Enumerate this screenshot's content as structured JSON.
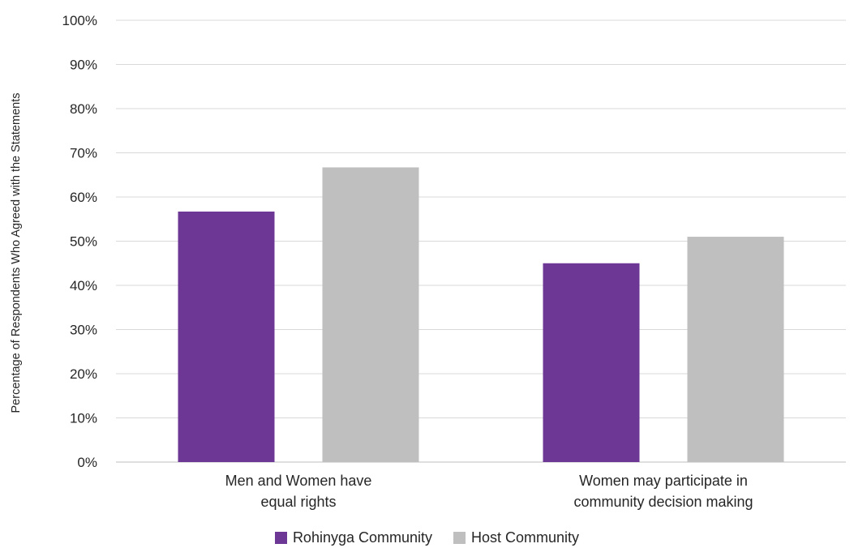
{
  "chart_data": {
    "type": "bar",
    "ylabel": "Percentage of Respondents Who Agreed with the Statements",
    "ylim": [
      0,
      100
    ],
    "y_ticks": [
      "0%",
      "10%",
      "20%",
      "30%",
      "40%",
      "50%",
      "60%",
      "70%",
      "80%",
      "90%",
      "100%"
    ],
    "categories": [
      [
        "Men and Women have",
        "equal rights"
      ],
      [
        "Women may participate in",
        "community decision making"
      ]
    ],
    "series": [
      {
        "name": "Rohinyga Community",
        "color": "#6d3795",
        "values": [
          56.7,
          45
        ]
      },
      {
        "name": "Host Community",
        "color": "#bfbfbf",
        "values": [
          66.7,
          51
        ]
      }
    ],
    "grid": true,
    "legend_position": "bottom"
  }
}
